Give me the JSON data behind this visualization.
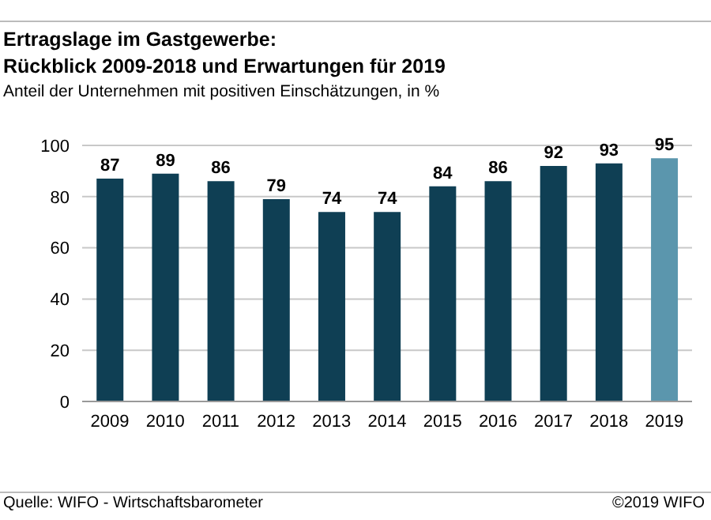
{
  "chart_data": {
    "type": "bar",
    "title": "Ertragslage im Gastgewerbe:\nRückblick 2009-2018 und Erwartungen für 2019",
    "subtitle": "Anteil der Unternehmen mit positiven Einschätzungen, in %",
    "categories": [
      "2009",
      "2010",
      "2011",
      "2012",
      "2013",
      "2014",
      "2015",
      "2016",
      "2017",
      "2018",
      "2019"
    ],
    "values": [
      87,
      89,
      86,
      79,
      74,
      74,
      84,
      86,
      92,
      93,
      95
    ],
    "colors": [
      "#0f3f54",
      "#0f3f54",
      "#0f3f54",
      "#0f3f54",
      "#0f3f54",
      "#0f3f54",
      "#0f3f54",
      "#0f3f54",
      "#0f3f54",
      "#0f3f54",
      "#5b96ad"
    ],
    "ylim": [
      0,
      100
    ],
    "yticks": [
      0,
      20,
      40,
      60,
      80,
      100
    ],
    "grid": "y",
    "data_labels": true,
    "annotations": [
      "Quelle: WIFO - Wirtschaftsbarometer",
      "©2019 WIFO"
    ]
  }
}
